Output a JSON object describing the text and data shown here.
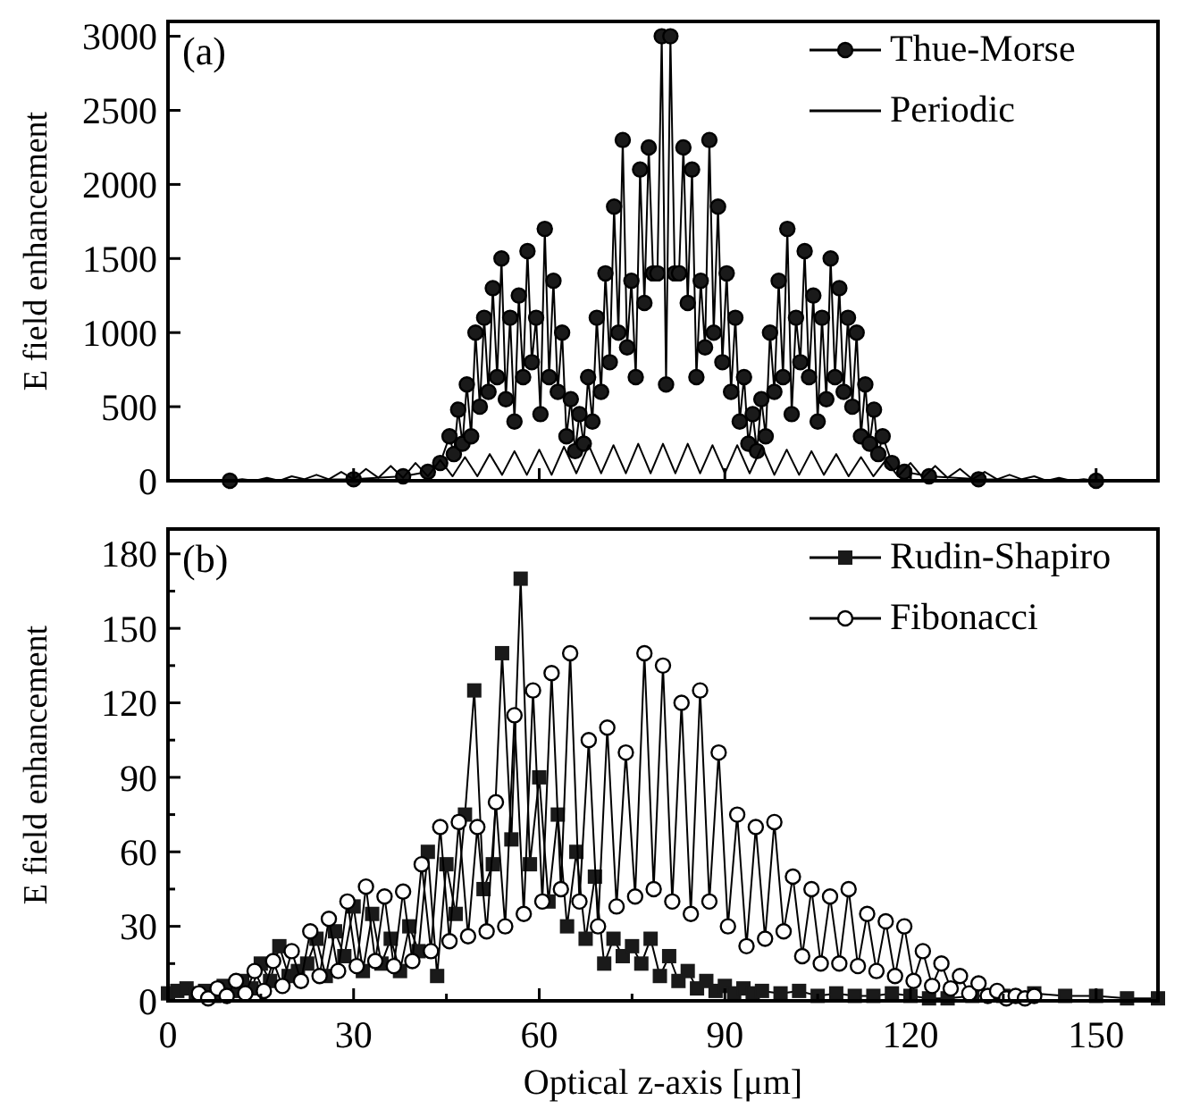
{
  "chart_data": [
    {
      "type": "line",
      "ylabel": "E field enhancement",
      "annotations": [
        "(a)"
      ],
      "xlim": [
        0,
        160
      ],
      "ylim": [
        0,
        3100
      ],
      "xticks": [
        0,
        30,
        60,
        90,
        120,
        150
      ],
      "yticks": [
        0,
        500,
        1000,
        1500,
        2000,
        2500,
        3000
      ],
      "tick_labels": "y",
      "legend": "top right",
      "series": [
        {
          "name": "Thue-Morse",
          "color": "#1a1a1a",
          "marker": "circle",
          "x": [
            10,
            30,
            38,
            42,
            44,
            45.5,
            46.2,
            46.9,
            47.6,
            48.3,
            49,
            49.7,
            50.4,
            51.1,
            51.8,
            52.5,
            53.2,
            53.9,
            54.6,
            55.3,
            56,
            56.7,
            57.4,
            58.1,
            58.8,
            59.5,
            60.2,
            60.9,
            61.6,
            62.3,
            63,
            63.7,
            64.4,
            65.1,
            65.8,
            66.5,
            67.2,
            67.9,
            68.6,
            69.3,
            70,
            70.7,
            71.4,
            72.1,
            72.8,
            73.5,
            74.2,
            74.9,
            75.6,
            76.3,
            77,
            77.7,
            78.4,
            79.1,
            79.8,
            80.5,
            81.2,
            81.9,
            82.6,
            83.3,
            84,
            84.7,
            85.4,
            86.1,
            86.8,
            87.5,
            88.2,
            88.9,
            89.6,
            90.3,
            91,
            91.7,
            92.4,
            93.1,
            93.8,
            94.5,
            95.2,
            95.9,
            96.6,
            97.3,
            98,
            98.7,
            99.4,
            100.1,
            100.8,
            101.5,
            102.2,
            102.9,
            103.6,
            104.3,
            105,
            105.7,
            106.4,
            107.1,
            107.8,
            108.5,
            109.2,
            109.9,
            110.6,
            111.3,
            112,
            112.7,
            113.4,
            114.1,
            114.8,
            115.5,
            117,
            119,
            123,
            131,
            150
          ],
          "values": [
            0,
            10,
            30,
            60,
            120,
            300,
            180,
            480,
            250,
            650,
            300,
            1000,
            500,
            1100,
            600,
            1300,
            700,
            1500,
            550,
            1100,
            400,
            1250,
            700,
            1550,
            800,
            1100,
            450,
            1700,
            700,
            1350,
            600,
            1000,
            300,
            550,
            200,
            450,
            250,
            700,
            400,
            1100,
            600,
            1400,
            800,
            1850,
            1000,
            2300,
            900,
            1350,
            700,
            2100,
            1200,
            2250,
            1400,
            1400,
            3000,
            650,
            3000,
            1400,
            1400,
            2250,
            1200,
            2100,
            700,
            1350,
            900,
            2300,
            1000,
            1850,
            800,
            1400,
            600,
            1100,
            400,
            700,
            250,
            450,
            200,
            550,
            300,
            1000,
            600,
            1350,
            700,
            1700,
            450,
            1100,
            800,
            1550,
            700,
            1250,
            400,
            1100,
            550,
            1500,
            700,
            1300,
            600,
            1100,
            500,
            1000,
            300,
            650,
            250,
            480,
            180,
            300,
            120,
            60,
            30,
            10,
            0
          ]
        },
        {
          "name": "Periodic",
          "color": "#000000",
          "marker": "none",
          "x": [
            8,
            10,
            12,
            14,
            16,
            18,
            20,
            22,
            24,
            26,
            28,
            30,
            32,
            34,
            36,
            38,
            40,
            42,
            44,
            46,
            48,
            50,
            52,
            54,
            56,
            58,
            60,
            62,
            64,
            66,
            68,
            70,
            72,
            74,
            76,
            78,
            80,
            82,
            84,
            86,
            88,
            90,
            92,
            94,
            96,
            98,
            100,
            102,
            104,
            106,
            108,
            110,
            112,
            114,
            116,
            118,
            120,
            122,
            124,
            126,
            128,
            130,
            132,
            134,
            136,
            138,
            140,
            142,
            144,
            146,
            148,
            150,
            152
          ],
          "values": [
            0,
            0,
            10,
            0,
            20,
            0,
            30,
            10,
            40,
            10,
            60,
            10,
            80,
            20,
            100,
            20,
            120,
            30,
            140,
            30,
            160,
            30,
            180,
            40,
            200,
            40,
            210,
            40,
            230,
            50,
            240,
            50,
            240,
            50,
            250,
            50,
            250,
            50,
            250,
            50,
            240,
            50,
            240,
            50,
            230,
            40,
            210,
            40,
            200,
            40,
            180,
            30,
            160,
            30,
            140,
            30,
            120,
            20,
            100,
            20,
            80,
            10,
            60,
            10,
            40,
            10,
            30,
            0,
            20,
            0,
            10,
            0,
            0
          ]
        }
      ]
    },
    {
      "type": "line",
      "xlabel": "Optical z-axis [μm]",
      "ylabel": "E field enhancement",
      "annotations": [
        "(b)"
      ],
      "xlim": [
        0,
        160
      ],
      "ylim": [
        0,
        190
      ],
      "xticks": [
        0,
        {
          "value": 15,
          "label": null
        },
        30,
        {
          "value": 45,
          "label": null
        },
        60,
        {
          "value": 75,
          "label": null
        },
        90,
        {
          "value": 105,
          "label": null
        },
        120,
        {
          "value": 135,
          "label": null
        },
        150
      ],
      "yticks": [
        0,
        {
          "value": 15,
          "label": null
        },
        30,
        {
          "value": 45,
          "label": null
        },
        60,
        {
          "value": 75,
          "label": null
        },
        90,
        {
          "value": 105,
          "label": null
        },
        120,
        {
          "value": 135,
          "label": null
        },
        150,
        {
          "value": 165,
          "label": null
        },
        180
      ],
      "legend": "top right",
      "series": [
        {
          "name": "Rudin-Shapiro",
          "color": "#1a1a1a",
          "marker": "square",
          "x": [
            0,
            1.5,
            3,
            4.5,
            6,
            7.5,
            9,
            10.5,
            12,
            13.5,
            15,
            16.5,
            18,
            19.5,
            21,
            22.5,
            24,
            25.5,
            27,
            28.5,
            30,
            31.5,
            33,
            34.5,
            36,
            37.5,
            39,
            40.5,
            42,
            43.5,
            45,
            46.5,
            48,
            49.5,
            51,
            52.5,
            54,
            55.5,
            57,
            58.5,
            60,
            61.5,
            63,
            64.5,
            66,
            67.5,
            69,
            70.5,
            72,
            73.5,
            75,
            76.5,
            78,
            79.5,
            81,
            82.5,
            84,
            85.5,
            87,
            88.5,
            90,
            91.5,
            93,
            94.5,
            96,
            99,
            102,
            105,
            108,
            111,
            114,
            117,
            120,
            123,
            126,
            130,
            135,
            140,
            145,
            150,
            155,
            160
          ],
          "values": [
            3,
            4,
            5,
            3,
            4,
            2,
            6,
            4,
            8,
            5,
            15,
            8,
            22,
            10,
            12,
            15,
            25,
            10,
            28,
            18,
            38,
            12,
            35,
            15,
            25,
            12,
            30,
            20,
            60,
            10,
            55,
            35,
            75,
            125,
            45,
            55,
            140,
            65,
            170,
            55,
            90,
            40,
            75,
            30,
            60,
            25,
            50,
            15,
            25,
            18,
            22,
            15,
            25,
            10,
            18,
            8,
            12,
            5,
            8,
            4,
            6,
            3,
            5,
            3,
            4,
            3,
            4,
            2,
            3,
            2,
            2,
            3,
            2,
            1,
            1,
            2,
            2,
            3,
            2,
            2,
            1,
            1
          ]
        },
        {
          "name": "Fibonacci",
          "color": "#ffffff",
          "marker": "circle",
          "x": [
            5,
            6.5,
            8,
            9.5,
            11,
            12.5,
            14,
            15.5,
            17,
            18.5,
            20,
            21.5,
            23,
            24.5,
            26,
            27.5,
            29,
            30.5,
            32,
            33.5,
            35,
            36.5,
            38,
            39.5,
            41,
            42.5,
            44,
            45.5,
            47,
            48.5,
            50,
            51.5,
            53,
            54.5,
            56,
            57.5,
            59,
            60.5,
            62,
            63.5,
            65,
            66.5,
            68,
            69.5,
            71,
            72.5,
            74,
            75.5,
            77,
            78.5,
            80,
            81.5,
            83,
            84.5,
            86,
            87.5,
            89,
            90.5,
            92,
            93.5,
            95,
            96.5,
            98,
            99.5,
            101,
            102.5,
            104,
            105.5,
            107,
            108.5,
            110,
            111.5,
            113,
            114.5,
            116,
            117.5,
            119,
            120.5,
            122,
            123.5,
            125,
            126.5,
            128,
            129.5,
            131,
            132.5,
            134,
            135.5,
            137,
            138.5,
            140
          ],
          "values": [
            3,
            1,
            5,
            2,
            8,
            3,
            12,
            4,
            16,
            6,
            20,
            8,
            28,
            10,
            33,
            12,
            40,
            14,
            46,
            16,
            42,
            14,
            44,
            16,
            55,
            20,
            70,
            24,
            72,
            26,
            70,
            28,
            80,
            30,
            115,
            35,
            125,
            40,
            132,
            45,
            140,
            40,
            105,
            30,
            110,
            38,
            100,
            42,
            140,
            45,
            135,
            40,
            120,
            35,
            125,
            40,
            100,
            30,
            75,
            22,
            70,
            25,
            72,
            28,
            50,
            18,
            45,
            15,
            42,
            15,
            45,
            14,
            35,
            12,
            32,
            10,
            30,
            8,
            20,
            6,
            15,
            5,
            10,
            3,
            7,
            2,
            4,
            1,
            2,
            1,
            2
          ]
        }
      ]
    }
  ]
}
